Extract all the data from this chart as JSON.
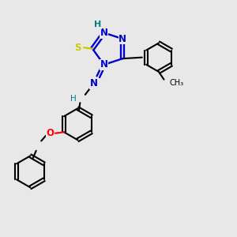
{
  "bg_color": "#e8e8e8",
  "atom_colors": {
    "C": "#000000",
    "N": "#0000cc",
    "H": "#008080",
    "S": "#cccc00",
    "O": "#ff0000"
  },
  "figsize": [
    3.0,
    3.0
  ],
  "dpi": 100,
  "xlim": [
    0,
    10
  ],
  "ylim": [
    0,
    10
  ]
}
